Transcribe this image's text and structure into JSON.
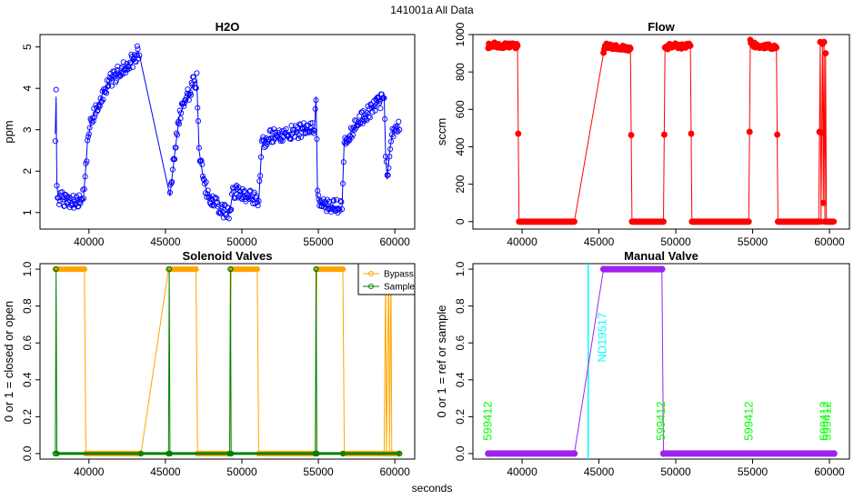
{
  "page_title": "141001a   All Data",
  "shared_xlabel": "seconds",
  "chart_data": [
    {
      "id": "h2o",
      "type": "scatter",
      "title": "H2O",
      "xlabel": "",
      "ylabel": "ppm",
      "xlim": [
        36800,
        61300
      ],
      "ylim": [
        0.6,
        5.3
      ],
      "xticks": [
        40000,
        45000,
        50000,
        55000,
        60000
      ],
      "yticks": [
        1,
        2,
        3,
        4,
        5
      ],
      "series": [
        {
          "name": "H2O",
          "color": "#0000ff",
          "marker": "open-circle",
          "line": true,
          "points": [
            [
              37800,
              2.9
            ],
            [
              37850,
              3.8
            ],
            [
              37900,
              1.7
            ],
            [
              38000,
              1.3
            ],
            [
              38200,
              1.35
            ],
            [
              38500,
              1.3
            ],
            [
              38800,
              1.3
            ],
            [
              39100,
              1.25
            ],
            [
              39400,
              1.35
            ],
            [
              39650,
              1.4
            ],
            [
              39800,
              2.1
            ],
            [
              39900,
              2.7
            ],
            [
              40000,
              2.9
            ],
            [
              40200,
              3.3
            ],
            [
              40500,
              3.5
            ],
            [
              40800,
              3.8
            ],
            [
              41100,
              4.0
            ],
            [
              41400,
              4.2
            ],
            [
              41700,
              4.3
            ],
            [
              42000,
              4.4
            ],
            [
              42300,
              4.5
            ],
            [
              42600,
              4.6
            ],
            [
              42900,
              4.7
            ],
            [
              43200,
              4.9
            ],
            [
              43300,
              4.8
            ],
            [
              45300,
              1.4
            ],
            [
              45600,
              2.4
            ],
            [
              45900,
              3.3
            ],
            [
              46200,
              3.6
            ],
            [
              46500,
              3.85
            ],
            [
              46800,
              4.1
            ],
            [
              47050,
              4.2
            ],
            [
              47200,
              2.5
            ],
            [
              47400,
              2.0
            ],
            [
              47700,
              1.5
            ],
            [
              48000,
              1.3
            ],
            [
              48400,
              1.15
            ],
            [
              48800,
              1.05
            ],
            [
              49200,
              1.0
            ],
            [
              49400,
              1.45
            ],
            [
              49700,
              1.5
            ],
            [
              50000,
              1.45
            ],
            [
              50300,
              1.4
            ],
            [
              50600,
              1.35
            ],
            [
              50900,
              1.3
            ],
            [
              51100,
              1.25
            ],
            [
              51300,
              2.6
            ],
            [
              51600,
              2.8
            ],
            [
              52000,
              2.85
            ],
            [
              52400,
              2.9
            ],
            [
              52800,
              2.9
            ],
            [
              53200,
              2.95
            ],
            [
              53600,
              2.95
            ],
            [
              54000,
              3.0
            ],
            [
              54400,
              3.0
            ],
            [
              54750,
              3.05
            ],
            [
              54850,
              3.8
            ],
            [
              54950,
              1.4
            ],
            [
              55200,
              1.2
            ],
            [
              55500,
              1.15
            ],
            [
              55800,
              1.15
            ],
            [
              56100,
              1.15
            ],
            [
              56400,
              1.1
            ],
            [
              56550,
              1.15
            ],
            [
              56700,
              2.8
            ],
            [
              57000,
              2.9
            ],
            [
              57300,
              3.0
            ],
            [
              57600,
              3.2
            ],
            [
              57900,
              3.3
            ],
            [
              58200,
              3.4
            ],
            [
              58500,
              3.5
            ],
            [
              58800,
              3.6
            ],
            [
              59100,
              3.7
            ],
            [
              59300,
              3.8
            ],
            [
              59400,
              2.4
            ],
            [
              59500,
              1.8
            ],
            [
              59700,
              2.6
            ],
            [
              59900,
              3.0
            ],
            [
              60100,
              3.1
            ],
            [
              60300,
              3.0
            ]
          ]
        }
      ]
    },
    {
      "id": "flow",
      "type": "scatter",
      "title": "Flow",
      "xlabel": "",
      "ylabel": "sccm",
      "xlim": [
        36800,
        61300
      ],
      "ylim": [
        -40,
        1000
      ],
      "xticks": [
        40000,
        45000,
        50000,
        55000,
        60000
      ],
      "yticks": [
        0,
        200,
        400,
        600,
        800,
        1000
      ],
      "series": [
        {
          "name": "Flow",
          "color": "#ff0000",
          "marker": "filled-circle",
          "line": true,
          "points": [
            [
              37800,
              940
            ],
            [
              38200,
              945
            ],
            [
              38600,
              940
            ],
            [
              39000,
              942
            ],
            [
              39400,
              940
            ],
            [
              39700,
              940
            ],
            [
              39800,
              0
            ],
            [
              40500,
              0
            ],
            [
              41500,
              0
            ],
            [
              42500,
              0
            ],
            [
              43400,
              0
            ],
            [
              45300,
              900
            ],
            [
              45400,
              940
            ],
            [
              45800,
              935
            ],
            [
              46200,
              930
            ],
            [
              46600,
              930
            ],
            [
              47050,
              925
            ],
            [
              47150,
              0
            ],
            [
              47700,
              0
            ],
            [
              48300,
              0
            ],
            [
              48900,
              0
            ],
            [
              49200,
              0
            ],
            [
              49300,
              930
            ],
            [
              49700,
              940
            ],
            [
              50100,
              940
            ],
            [
              50500,
              935
            ],
            [
              50950,
              940
            ],
            [
              51050,
              0
            ],
            [
              51800,
              0
            ],
            [
              52600,
              0
            ],
            [
              53400,
              0
            ],
            [
              54200,
              0
            ],
            [
              54750,
              0
            ],
            [
              54850,
              960
            ],
            [
              55200,
              940
            ],
            [
              55700,
              935
            ],
            [
              56100,
              935
            ],
            [
              56550,
              930
            ],
            [
              56650,
              0
            ],
            [
              57300,
              0
            ],
            [
              58000,
              0
            ],
            [
              58700,
              0
            ],
            [
              59300,
              0
            ],
            [
              59400,
              960
            ],
            [
              59450,
              0
            ],
            [
              59550,
              950
            ],
            [
              59600,
              100
            ],
            [
              59650,
              960
            ],
            [
              59700,
              0
            ],
            [
              59750,
              900
            ],
            [
              59800,
              0
            ],
            [
              60000,
              0
            ],
            [
              60300,
              0
            ]
          ]
        }
      ]
    },
    {
      "id": "solenoid",
      "type": "line",
      "title": "Solenoid Valves",
      "xlabel": "",
      "ylabel": "0 or 1 = closed or open",
      "xlim": [
        36800,
        61300
      ],
      "ylim": [
        -0.03,
        1.03
      ],
      "xticks": [
        40000,
        45000,
        50000,
        55000,
        60000
      ],
      "yticks": [
        0.0,
        0.2,
        0.4,
        0.6,
        0.8,
        1.0
      ],
      "ytick_labels": [
        "0.0",
        "0.2",
        "0.4",
        "0.6",
        "0.8",
        "1.0"
      ],
      "legend": {
        "placement": "top-right",
        "entries": [
          {
            "label": "Bypass",
            "color": "#ffa500"
          },
          {
            "label": "Sample",
            "color": "#008000"
          }
        ]
      },
      "series": [
        {
          "name": "Bypass",
          "color": "#ffa500",
          "points": [
            [
              37800,
              1
            ],
            [
              39700,
              1
            ],
            [
              39800,
              0
            ],
            [
              43400,
              0
            ],
            [
              45200,
              1
            ],
            [
              47000,
              1
            ],
            [
              47100,
              0
            ],
            [
              49200,
              0
            ],
            [
              49300,
              1
            ],
            [
              51000,
              1
            ],
            [
              51100,
              0
            ],
            [
              54800,
              0
            ],
            [
              54900,
              1
            ],
            [
              56600,
              1
            ],
            [
              56700,
              0
            ],
            [
              59300,
              0
            ],
            [
              59400,
              1
            ],
            [
              59450,
              0
            ],
            [
              59600,
              1
            ],
            [
              59650,
              0
            ],
            [
              59750,
              1
            ],
            [
              59800,
              0
            ],
            [
              60300,
              0
            ]
          ]
        },
        {
          "name": "Sample",
          "color": "#008000",
          "points": [
            [
              37800,
              0
            ],
            [
              37850,
              1
            ],
            [
              37900,
              0
            ],
            [
              43400,
              0
            ],
            [
              45200,
              0
            ],
            [
              45250,
              1
            ],
            [
              45300,
              0
            ],
            [
              49200,
              0
            ],
            [
              49250,
              1
            ],
            [
              49300,
              0
            ],
            [
              54800,
              0
            ],
            [
              54850,
              1
            ],
            [
              54900,
              0
            ],
            [
              56600,
              0
            ],
            [
              60300,
              0
            ]
          ]
        }
      ]
    },
    {
      "id": "manual",
      "type": "line",
      "title": "Manual Valve",
      "xlabel": "",
      "ylabel": "0 or 1 = ref or sample",
      "xlim": [
        36800,
        61300
      ],
      "ylim": [
        -0.03,
        1.03
      ],
      "xticks": [
        40000,
        45000,
        50000,
        55000,
        60000
      ],
      "yticks": [
        0.0,
        0.2,
        0.4,
        0.6,
        0.8,
        1.0
      ],
      "ytick_labels": [
        "0.0",
        "0.2",
        "0.4",
        "0.6",
        "0.8",
        "1.0"
      ],
      "series": [
        {
          "name": "Manual",
          "color": "#a020f0",
          "points": [
            [
              37800,
              0
            ],
            [
              43400,
              0
            ],
            [
              45300,
              1
            ],
            [
              49100,
              1
            ],
            [
              49200,
              0
            ],
            [
              60300,
              0
            ]
          ]
        }
      ],
      "vlines": [
        {
          "x": 44300,
          "color": "#00ffff",
          "label": "ND19517"
        }
      ],
      "annotations": [
        {
          "x": 38000,
          "y": 0.07,
          "text": "599412",
          "color": "#00ff00"
        },
        {
          "x": 49300,
          "y": 0.07,
          "text": "599412",
          "color": "#00ff00"
        },
        {
          "x": 55000,
          "y": 0.07,
          "text": "599412",
          "color": "#00ff00"
        },
        {
          "x": 59900,
          "y": 0.07,
          "text": "599412",
          "color": "#00ff00"
        },
        {
          "x": 60100,
          "y": 0.07,
          "text": "599412",
          "color": "#00ff00"
        }
      ]
    }
  ]
}
